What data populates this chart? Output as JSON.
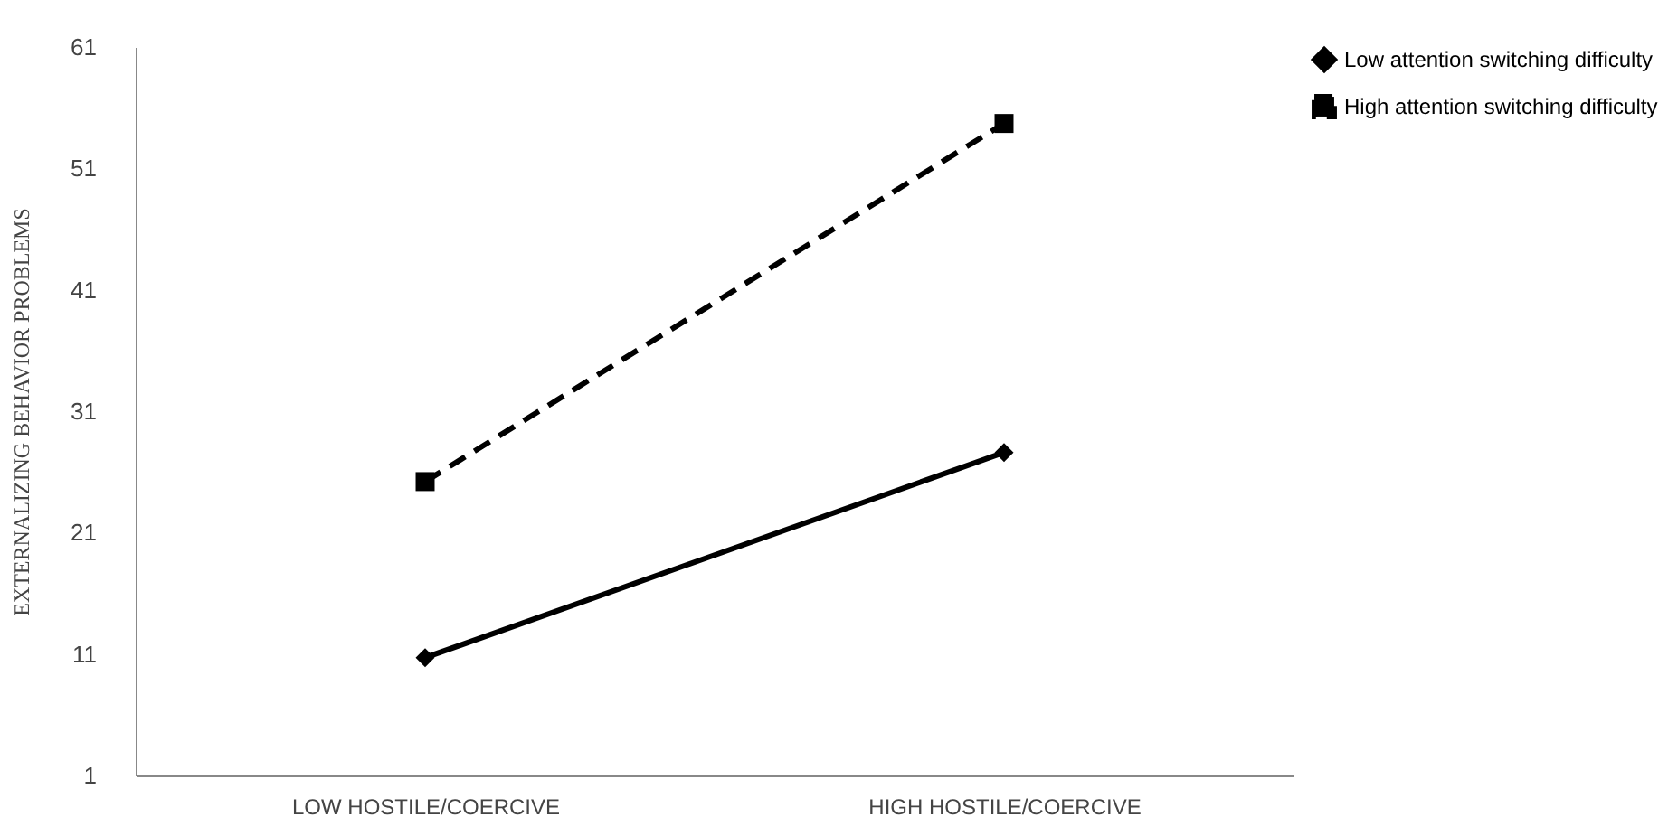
{
  "chart_data": {
    "type": "line",
    "ylabel": "EXTERNALIZING BEHAVIOR PROBLEMS",
    "categories": [
      "LOW HOSTILE/COERCIVE",
      "HIGH HOSTILE/COERCIVE"
    ],
    "series": [
      {
        "name": "Low attention switching difficulty",
        "color": "#000000",
        "values": [
          10.7,
          27.6
        ],
        "marker": "diamond",
        "line_style": "solid"
      },
      {
        "name": "High attention switching difficulty",
        "color": "#000000",
        "values": [
          25.2,
          54.7
        ],
        "marker": "square",
        "line_style": "dashed"
      }
    ],
    "ylim": [
      1,
      61
    ],
    "yticks": [
      1,
      11,
      21,
      31,
      41,
      51,
      61
    ],
    "grid": false,
    "legend": "right"
  }
}
